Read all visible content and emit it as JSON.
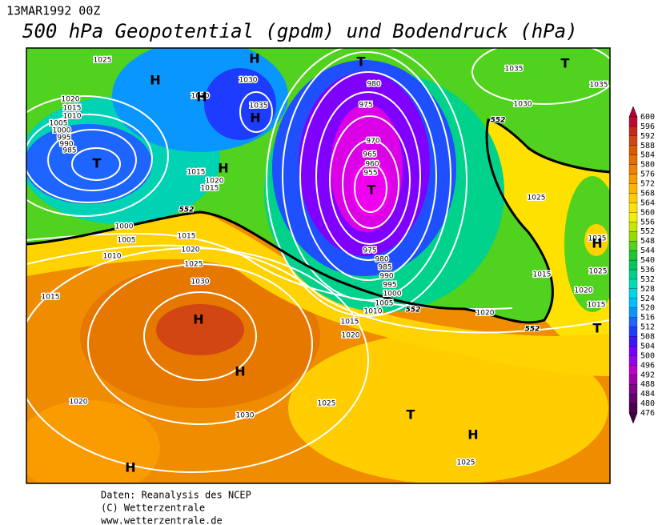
{
  "header": {
    "date": "13MAR1992 00Z",
    "title": "500 hPa Geopotential (gpdm) und Bodendruck (hPa)"
  },
  "colorbar": {
    "values": [
      476,
      480,
      484,
      488,
      492,
      496,
      500,
      504,
      508,
      512,
      516,
      520,
      524,
      528,
      532,
      536,
      540,
      544,
      548,
      552,
      556,
      560,
      564,
      568,
      572,
      576,
      580,
      584,
      588,
      592,
      596,
      600
    ],
    "colors": [
      "#4b0050",
      "#64006e",
      "#82008c",
      "#a000aa",
      "#be00c8",
      "#9600f0",
      "#7800ff",
      "#3c14ff",
      "#1e3cff",
      "#1e64ff",
      "#0a96ff",
      "#00beff",
      "#00d7e6",
      "#00dcb4",
      "#00d28c",
      "#00c85a",
      "#1ec832",
      "#50d21e",
      "#96dc00",
      "#c8e600",
      "#f0f000",
      "#ffe100",
      "#ffcd00",
      "#ffb400",
      "#fa9b00",
      "#f08200",
      "#e66e00",
      "#dc5a00",
      "#d24614",
      "#c8281e",
      "#be0a32"
    ]
  },
  "isobar_labels": [
    "1025",
    "1020",
    "1015",
    "1010",
    "1005",
    "1000",
    "995",
    "990",
    "985",
    "1030",
    "1030",
    "1035",
    "1015",
    "1020",
    "1015",
    "1000",
    "1005",
    "1010",
    "1015",
    "1020",
    "1025",
    "1030",
    "1015",
    "980",
    "975",
    "970",
    "965",
    "960",
    "955",
    "975",
    "980",
    "985",
    "990",
    "995",
    "1000",
    "1005",
    "1010",
    "1015",
    "1020",
    "1035",
    "1035",
    "1030",
    "1025",
    "1025",
    "1025",
    "1015",
    "1020",
    "1015",
    "1020",
    "1020",
    "1030",
    "1025",
    "1025"
  ],
  "contour_labels": [
    "552",
    "552",
    "552",
    "552"
  ],
  "markers": [
    "H",
    "H",
    "H",
    "H",
    "H",
    "H",
    "H",
    "H",
    "H",
    "H",
    "T",
    "T",
    "T",
    "T",
    "T",
    "T"
  ],
  "footer": [
    "Daten: Reanalysis des NCEP",
    "(C) Wetterzentrale",
    "www.wetterzentrale.de"
  ]
}
